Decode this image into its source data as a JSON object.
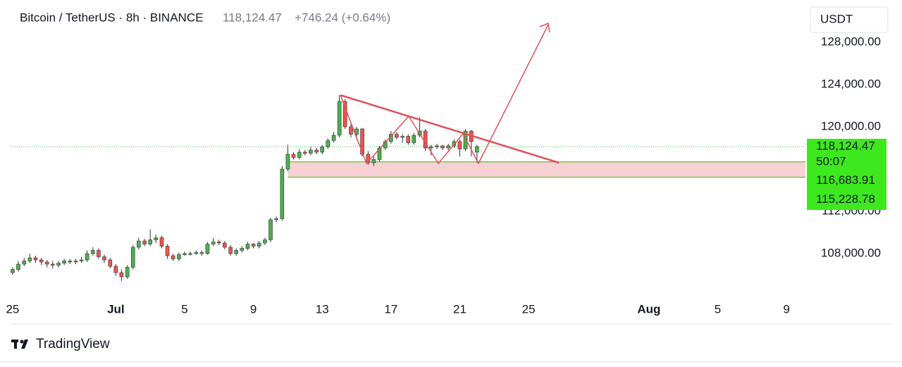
{
  "chart_data": {
    "type": "candlestick",
    "title": "Bitcoin / TetherUS · 8h · BINANCE",
    "change": "+746.24 (+0.64%)",
    "currency": "USDT",
    "brand": "TradingView",
    "countdown": "50:07",
    "up_color": "#4caf50",
    "down_color": "#ef5350",
    "x": [
      -5,
      -4.67,
      -4.33,
      -4,
      -3.67,
      -3.33,
      -3,
      -2.67,
      -2.33,
      -2,
      -1.67,
      -1.33,
      -1,
      -0.67,
      -0.33,
      0,
      0.33,
      0.67,
      1,
      1.33,
      1.67,
      2,
      2.33,
      2.67,
      3,
      3.33,
      3.67,
      4,
      4.33,
      4.67,
      5,
      5.33,
      5.67,
      6,
      6.33,
      6.67,
      7,
      7.33,
      7.67,
      8,
      8.33,
      8.67,
      9,
      9.33,
      9.67,
      10,
      10.33,
      10.67,
      11,
      11.33,
      11.67,
      12,
      12.33,
      12.67,
      13,
      13.33,
      13.67,
      14,
      14.33,
      14.67,
      15,
      15.33,
      15.67,
      16,
      16.33,
      16.67,
      17,
      17.33,
      17.67,
      18,
      18.33,
      18.67,
      19,
      19.33,
      19.67,
      20,
      20.33,
      20.67,
      21,
      21.33,
      21.67,
      22
    ],
    "open": [
      106200,
      106500,
      107000,
      107300,
      107600,
      107400,
      107200,
      107000,
      106900,
      107100,
      107300,
      107200,
      107300,
      107400,
      108000,
      108300,
      107700,
      107400,
      106800,
      106200,
      105800,
      106700,
      108600,
      109200,
      108900,
      109300,
      109500,
      108700,
      107800,
      107500,
      107900,
      108000,
      108000,
      108100,
      108000,
      108900,
      109100,
      109000,
      108600,
      108000,
      108300,
      108500,
      108900,
      108700,
      109000,
      109300,
      111200,
      111300,
      116000,
      117400,
      117100,
      117600,
      117500,
      117800,
      117600,
      118100,
      118700,
      119200,
      122400,
      120000,
      119300,
      119800,
      117400,
      116600,
      116900,
      118000,
      118600,
      119300,
      119000,
      119100,
      118500,
      119200,
      119600,
      118000,
      118100,
      118200,
      118000,
      118200,
      118600,
      117900,
      119600,
      117600
    ],
    "high": [
      106700,
      107300,
      107600,
      108000,
      107800,
      107600,
      107400,
      107300,
      107300,
      107500,
      107500,
      107500,
      107700,
      108300,
      108600,
      108500,
      107900,
      107600,
      107000,
      106500,
      106900,
      108800,
      109500,
      109400,
      110300,
      109800,
      109700,
      108900,
      108000,
      108100,
      108200,
      108200,
      108300,
      108300,
      109100,
      109500,
      109300,
      109200,
      108800,
      108500,
      108700,
      109100,
      109000,
      109200,
      109500,
      111400,
      111500,
      116300,
      118300,
      117600,
      117900,
      117800,
      118100,
      118000,
      118300,
      118900,
      119500,
      123000,
      122600,
      120300,
      120000,
      119900,
      117700,
      117200,
      118200,
      118800,
      119600,
      119500,
      119300,
      119300,
      119400,
      120900,
      119800,
      118300,
      118400,
      118300,
      118400,
      118800,
      118800,
      119800,
      119700,
      118300
    ],
    "low": [
      106000,
      106300,
      106800,
      107100,
      107100,
      106900,
      106700,
      106600,
      106700,
      106900,
      107000,
      107000,
      107100,
      107200,
      107800,
      107500,
      107100,
      106600,
      105900,
      105400,
      105600,
      106500,
      108400,
      108700,
      108700,
      109000,
      108500,
      107500,
      107300,
      107300,
      107800,
      107800,
      107900,
      107800,
      107900,
      108700,
      108800,
      108400,
      107800,
      107800,
      108100,
      108300,
      108500,
      108500,
      108800,
      109100,
      111000,
      111100,
      115800,
      116900,
      116900,
      117300,
      117300,
      117400,
      117400,
      117900,
      118500,
      119000,
      119800,
      119000,
      118800,
      117200,
      116400,
      116300,
      116700,
      117800,
      118400,
      118800,
      118500,
      118300,
      118300,
      119000,
      117700,
      117300,
      117900,
      117800,
      117800,
      118000,
      117200,
      117700,
      117200,
      116600
    ],
    "close": [
      106500,
      107000,
      107300,
      107600,
      107400,
      107200,
      107000,
      106900,
      107100,
      107300,
      107200,
      107300,
      107400,
      108000,
      108300,
      107700,
      107400,
      106800,
      106200,
      105800,
      106700,
      108600,
      109200,
      108900,
      109300,
      109500,
      108700,
      107800,
      107500,
      107900,
      108000,
      108000,
      108100,
      108000,
      108900,
      109100,
      109000,
      108600,
      108000,
      108300,
      108500,
      108900,
      108700,
      109000,
      109300,
      111200,
      111300,
      116000,
      117400,
      117100,
      117600,
      117500,
      117800,
      117600,
      118100,
      118700,
      119200,
      122400,
      120000,
      119300,
      119800,
      117400,
      116600,
      116900,
      118000,
      118600,
      119300,
      119000,
      119100,
      118500,
      119200,
      119600,
      118000,
      118100,
      118200,
      118000,
      118200,
      118600,
      117900,
      119600,
      118600,
      118124.47
    ],
    "xlim": [
      -5.12,
      41.1
    ],
    "xticks": [
      {
        "value": -5,
        "label": "25"
      },
      {
        "value": 1,
        "label": "Jul"
      },
      5,
      9,
      13,
      17,
      21,
      25,
      {
        "value": 32,
        "label": "Aug"
      },
      {
        "value": 36,
        "label": "5"
      },
      {
        "value": 40,
        "label": "9"
      }
    ],
    "ylim": [
      103667,
      132000
    ],
    "yticks": [
      {
        "value": 108000,
        "label": "108,000.00"
      },
      {
        "value": 112000,
        "label": "112,000.00"
      },
      {
        "value": 120000,
        "label": "120,000.00"
      },
      {
        "value": 124000,
        "label": "124,000.00"
      },
      {
        "value": 128000,
        "label": "128,000.00"
      }
    ],
    "last_price": {
      "value": 118124.47,
      "label": "118,124.47"
    },
    "zone": {
      "start": 11,
      "top": {
        "value": 116683.91,
        "label": "116,683.91"
      },
      "bottom": {
        "value": 115228.78,
        "label": "115,228.78"
      }
    }
  }
}
